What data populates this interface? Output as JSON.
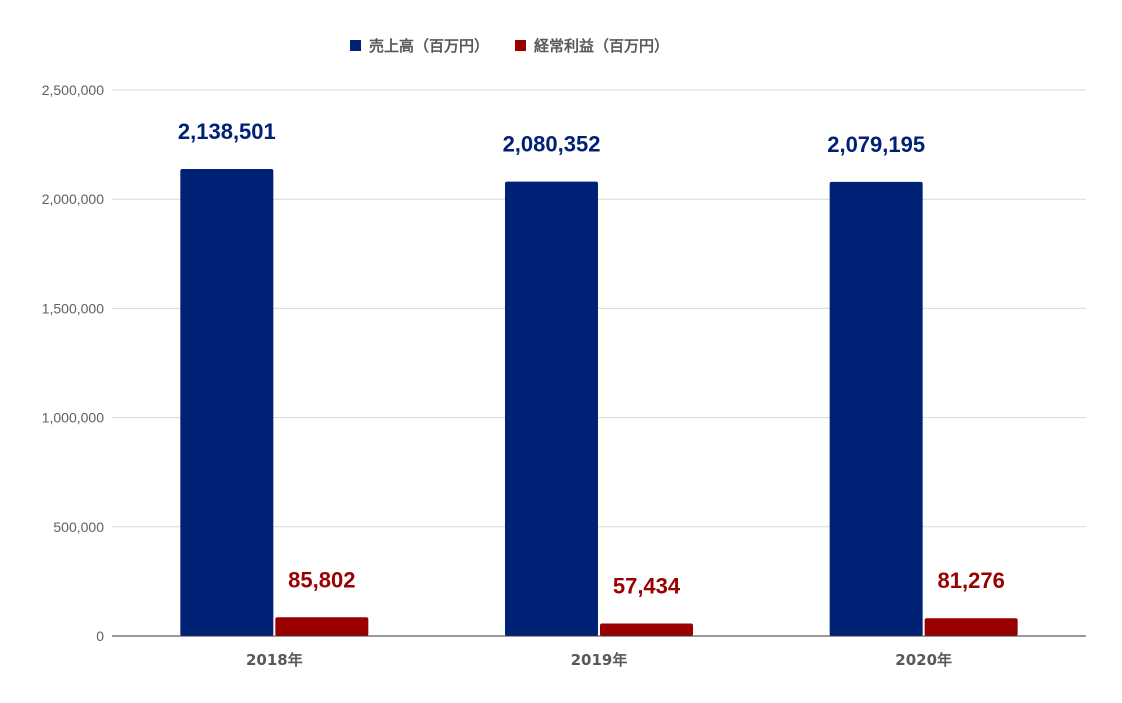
{
  "chart_data": {
    "type": "bar",
    "categories": [
      "2018年",
      "2019年",
      "2020年"
    ],
    "series": [
      {
        "name": "売上高（百万円）",
        "color": "#002276",
        "values": [
          2138501,
          2080352,
          2079195
        ],
        "labels": [
          "2,138,501",
          "2,080,352",
          "2,079,195"
        ]
      },
      {
        "name": "経常利益（百万円）",
        "color": "#990000",
        "values": [
          85802,
          57434,
          81276
        ],
        "labels": [
          "85,802",
          "57,434",
          "81,276"
        ]
      }
    ],
    "ylim": [
      0,
      2500000
    ],
    "yticks": [
      0,
      500000,
      1000000,
      1500000,
      2000000,
      2500000
    ],
    "ytick_labels": [
      "0",
      "500,000",
      "1,000,000",
      "1,500,000",
      "2,000,000",
      "2,500,000"
    ],
    "xlabel": "",
    "ylabel": "",
    "legend_position": "top-center",
    "grid": true
  }
}
